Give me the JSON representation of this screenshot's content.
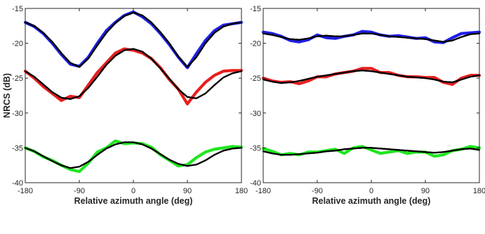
{
  "chart_data": [
    {
      "type": "line",
      "panel": "left",
      "xlabel": "Relative azimuth angle (deg)",
      "ylabel": "NRCS (dB)",
      "xlim": [
        -180,
        180
      ],
      "ylim": [
        -40,
        -15
      ],
      "xticks": [
        -180,
        -90,
        0,
        90,
        180
      ],
      "yticks": [
        -40,
        -35,
        -30,
        -25,
        -20,
        -15
      ],
      "grid": false,
      "x": [
        -180,
        -165,
        -150,
        -135,
        -120,
        -105,
        -90,
        -75,
        -60,
        -45,
        -30,
        -15,
        0,
        15,
        30,
        45,
        60,
        75,
        90,
        105,
        120,
        135,
        150,
        165,
        180
      ],
      "series": [
        {
          "color": "#1f1fe6",
          "style": "measured",
          "values": [
            -17.0,
            -17.6,
            -18.6,
            -20.0,
            -21.6,
            -23.0,
            -23.3,
            -22.0,
            -20.0,
            -18.2,
            -17.0,
            -16.0,
            -15.5,
            -16.2,
            -17.2,
            -18.6,
            -20.2,
            -22.0,
            -23.5,
            -21.5,
            -19.6,
            -18.2,
            -17.4,
            -17.2,
            -17.0
          ]
        },
        {
          "color": "#000000",
          "style": "fit",
          "values": [
            -17.0,
            -17.5,
            -18.5,
            -19.8,
            -21.4,
            -22.8,
            -23.4,
            -22.2,
            -20.3,
            -18.5,
            -17.1,
            -16.1,
            -15.6,
            -16.0,
            -17.0,
            -18.4,
            -20.0,
            -21.9,
            -23.4,
            -22.0,
            -20.0,
            -18.5,
            -17.6,
            -17.2,
            -17.0
          ]
        },
        {
          "color": "#e61f1f",
          "style": "measured",
          "values": [
            -24.0,
            -25.0,
            -26.2,
            -27.2,
            -28.2,
            -27.6,
            -27.8,
            -26.0,
            -24.2,
            -22.8,
            -21.4,
            -20.8,
            -21.0,
            -21.4,
            -22.2,
            -23.5,
            -25.2,
            -26.6,
            -28.7,
            -27.0,
            -25.6,
            -24.6,
            -24.0,
            -23.9,
            -23.9
          ]
        },
        {
          "color": "#000000",
          "style": "fit",
          "values": [
            -24.0,
            -24.8,
            -25.9,
            -27.0,
            -27.8,
            -28.0,
            -27.6,
            -26.4,
            -24.8,
            -23.1,
            -21.8,
            -21.0,
            -20.8,
            -21.2,
            -22.2,
            -23.6,
            -25.1,
            -26.6,
            -27.7,
            -27.9,
            -27.2,
            -26.0,
            -24.9,
            -24.3,
            -24.0
          ]
        },
        {
          "color": "#1fe61f",
          "style": "measured",
          "values": [
            -35.0,
            -35.5,
            -36.3,
            -36.8,
            -37.5,
            -38.1,
            -38.4,
            -37.2,
            -35.6,
            -35.0,
            -34.0,
            -34.4,
            -34.3,
            -34.4,
            -34.9,
            -36.0,
            -36.8,
            -37.6,
            -37.4,
            -36.4,
            -35.6,
            -35.2,
            -35.0,
            -34.8,
            -34.9
          ]
        },
        {
          "color": "#000000",
          "style": "fit",
          "values": [
            -35.0,
            -35.5,
            -36.2,
            -36.9,
            -37.5,
            -37.9,
            -37.7,
            -37.0,
            -36.0,
            -35.1,
            -34.5,
            -34.2,
            -34.2,
            -34.5,
            -35.1,
            -35.9,
            -36.7,
            -37.3,
            -37.6,
            -37.4,
            -36.8,
            -36.0,
            -35.4,
            -35.1,
            -35.0
          ]
        }
      ]
    },
    {
      "type": "line",
      "panel": "right",
      "xlabel": "Relative azimuth angle (deg)",
      "ylabel": "",
      "xlim": [
        -180,
        180
      ],
      "ylim": [
        -40,
        -15
      ],
      "xticks": [
        -180,
        -90,
        0,
        90,
        180
      ],
      "yticks": [
        -40,
        -35,
        -30,
        -25,
        -20,
        -15
      ],
      "grid": false,
      "x": [
        -180,
        -165,
        -150,
        -135,
        -120,
        -105,
        -90,
        -75,
        -60,
        -45,
        -30,
        -15,
        0,
        15,
        30,
        45,
        60,
        75,
        90,
        105,
        120,
        135,
        150,
        165,
        180
      ],
      "series": [
        {
          "color": "#1f1fe6",
          "style": "measured",
          "values": [
            -18.4,
            -18.6,
            -19.0,
            -19.6,
            -19.8,
            -19.5,
            -18.8,
            -19.2,
            -19.3,
            -19.0,
            -18.8,
            -18.3,
            -18.4,
            -18.8,
            -19.0,
            -18.9,
            -19.1,
            -19.3,
            -19.2,
            -19.8,
            -19.9,
            -19.2,
            -18.6,
            -18.5,
            -18.4
          ]
        },
        {
          "color": "#000000",
          "style": "fit",
          "values": [
            -18.6,
            -18.8,
            -19.1,
            -19.4,
            -19.5,
            -19.3,
            -19.0,
            -18.9,
            -19.0,
            -19.0,
            -18.8,
            -18.6,
            -18.6,
            -18.8,
            -19.0,
            -19.1,
            -19.2,
            -19.3,
            -19.4,
            -19.6,
            -19.8,
            -19.6,
            -19.1,
            -18.7,
            -18.6
          ]
        },
        {
          "color": "#e61f1f",
          "style": "measured",
          "values": [
            -25.0,
            -25.4,
            -25.6,
            -25.5,
            -25.8,
            -25.4,
            -24.8,
            -24.8,
            -24.4,
            -24.2,
            -24.0,
            -23.6,
            -23.6,
            -24.2,
            -24.2,
            -24.6,
            -24.8,
            -24.8,
            -24.9,
            -24.9,
            -25.6,
            -25.9,
            -25.0,
            -24.6,
            -24.6
          ]
        },
        {
          "color": "#000000",
          "style": "fit",
          "values": [
            -25.2,
            -25.5,
            -25.7,
            -25.6,
            -25.4,
            -25.1,
            -24.8,
            -24.6,
            -24.4,
            -24.2,
            -24.0,
            -23.9,
            -24.0,
            -24.2,
            -24.4,
            -24.6,
            -24.8,
            -24.9,
            -25.0,
            -25.2,
            -25.5,
            -25.6,
            -25.2,
            -24.8,
            -24.6
          ]
        },
        {
          "color": "#1fe61f",
          "style": "measured",
          "values": [
            -35.1,
            -35.5,
            -36.0,
            -35.8,
            -36.0,
            -35.6,
            -35.6,
            -35.4,
            -35.2,
            -35.8,
            -35.0,
            -34.8,
            -35.3,
            -35.8,
            -35.6,
            -35.4,
            -35.8,
            -35.6,
            -35.6,
            -36.2,
            -36.0,
            -35.4,
            -35.2,
            -34.8,
            -35.0
          ]
        },
        {
          "color": "#000000",
          "style": "fit",
          "values": [
            -35.5,
            -35.8,
            -36.0,
            -36.0,
            -35.9,
            -35.8,
            -35.7,
            -35.5,
            -35.4,
            -35.2,
            -35.1,
            -35.0,
            -35.0,
            -35.1,
            -35.2,
            -35.3,
            -35.4,
            -35.5,
            -35.6,
            -35.7,
            -35.6,
            -35.4,
            -35.2,
            -35.1,
            -35.3
          ]
        }
      ]
    }
  ]
}
